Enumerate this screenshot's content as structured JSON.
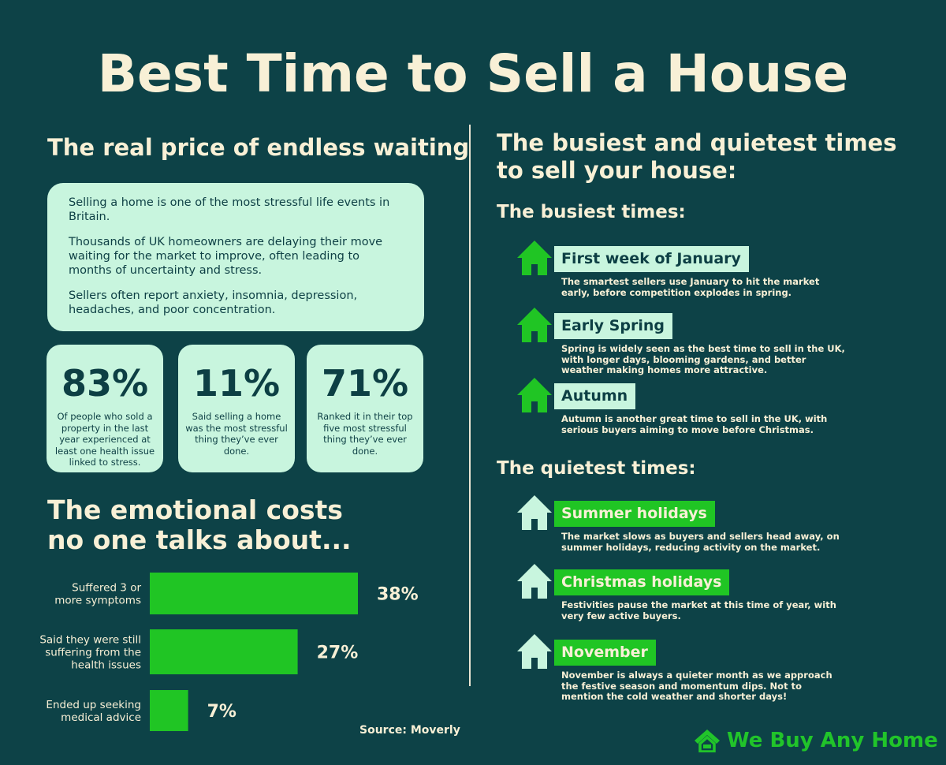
{
  "title": "Best Time to Sell a House",
  "left": {
    "heading": "The real price of endless waiting",
    "intro": [
      "Selling a home is one of the most stressful life events in Britain.",
      "Thousands of UK homeowners are delaying their move waiting for the market to improve, often leading to months of uncertainty and stress.",
      "Sellers often report anxiety, insomnia, depression, headaches, and poor concentration."
    ],
    "stats": [
      {
        "value": "83%",
        "text": "Of people who sold a property in the last year experienced at least one health issue linked to stress."
      },
      {
        "value": "11%",
        "text": "Said selling a home was the most stressful thing they’ve ever done."
      },
      {
        "value": "71%",
        "text": "Ranked it in their top five most stressful thing they’ve ever done."
      }
    ],
    "emotional_heading_line1": "The emotional costs",
    "emotional_heading_line2": "no one talks about...",
    "source": "Source: Moverly"
  },
  "chart_data": {
    "type": "bar",
    "orientation": "horizontal",
    "categories": [
      [
        "Suffered 3 or",
        "more symptoms"
      ],
      [
        "Said they were still",
        "suffering from the",
        "health issues"
      ],
      [
        "Ended up seeking",
        "medical advice"
      ]
    ],
    "values": [
      38,
      27,
      7
    ],
    "value_labels": [
      "38%",
      "27%",
      "7%"
    ],
    "bar_color": "#20c524"
  },
  "right": {
    "heading_line1": "The busiest and quietest times",
    "heading_line2": "to sell your house:",
    "busiest_heading": "The busiest times:",
    "busiest": [
      {
        "label": "First week of January",
        "desc": "The smartest sellers use January to hit the market early, before competition explodes in spring."
      },
      {
        "label": "Early Spring",
        "desc": "Spring is widely seen as the best time to sell in the UK, with longer days, blooming gardens, and better weather making homes more attractive."
      },
      {
        "label": "Autumn",
        "desc": "Autumn is another great time to sell in the UK, with serious buyers aiming to move before Christmas."
      }
    ],
    "quietest_heading": "The quietest times:",
    "quietest": [
      {
        "label": "Summer holidays",
        "desc": "The market slows as buyers and sellers head away, on summer holidays, reducing activity on the market."
      },
      {
        "label": "Christmas holidays",
        "desc": "Festivities pause the market at this time of year, with very few active buyers."
      },
      {
        "label": "November",
        "desc": "November is always a quieter month as we approach the festive season and momentum dips. Not to mention the cold weather and shorter days!"
      }
    ]
  },
  "brand": {
    "name": "We Buy Any Home",
    "icon": "house-logo-icon"
  },
  "colors": {
    "background": "#0d4247",
    "cream": "#f8f0d6",
    "mint": "#c8f5de",
    "green": "#20c524"
  }
}
